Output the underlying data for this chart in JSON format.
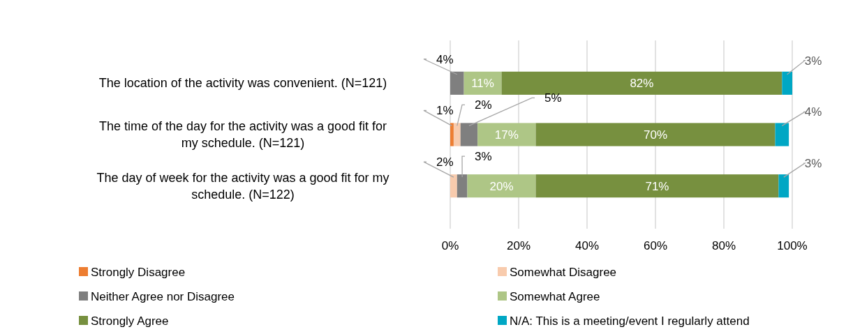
{
  "chart_data": {
    "type": "bar",
    "orientation": "horizontal",
    "stacked": true,
    "categories": [
      "The location of the activity was convenient. (N=121)",
      "The time of the day for the activity was a good fit for my schedule. (N=121)",
      "The day of week for the activity was a good fit for my schedule. (N=122)"
    ],
    "series": [
      {
        "name": "Strongly Disagree",
        "color": "#ed7d31",
        "values": [
          0,
          1,
          0
        ],
        "value_labels": [
          null,
          "1%",
          null
        ]
      },
      {
        "name": "Somewhat Disagree",
        "color": "#f8cbad",
        "values": [
          0,
          2,
          2
        ],
        "value_labels": [
          null,
          "2%",
          "2%"
        ]
      },
      {
        "name": "Neither Agree nor Disagree",
        "color": "#7f7f7f",
        "values": [
          4,
          5,
          3
        ],
        "value_labels": [
          "4%",
          "5%",
          "3%"
        ]
      },
      {
        "name": "Somewhat Agree",
        "color": "#aec686",
        "values": [
          11,
          17,
          20
        ],
        "value_labels": [
          "11%",
          "17%",
          "20%"
        ]
      },
      {
        "name": "Strongly Agree",
        "color": "#77903f",
        "values": [
          82,
          70,
          71
        ],
        "value_labels": [
          "82%",
          "70%",
          "71%"
        ]
      },
      {
        "name": "N/A: This is a meeting/event I regularly attend",
        "color": "#00a7c4",
        "values": [
          3,
          4,
          3
        ],
        "value_labels": [
          "3%",
          "4%",
          "3%"
        ]
      }
    ],
    "xlim": [
      0,
      100
    ],
    "xticks": [
      {
        "value": 0,
        "label": "0%"
      },
      {
        "value": 20,
        "label": "20%"
      },
      {
        "value": 40,
        "label": "40%"
      },
      {
        "value": 60,
        "label": "60%"
      },
      {
        "value": 80,
        "label": "80%"
      },
      {
        "value": 100,
        "label": "100%"
      }
    ],
    "grid": "x",
    "legend": "bottom"
  }
}
